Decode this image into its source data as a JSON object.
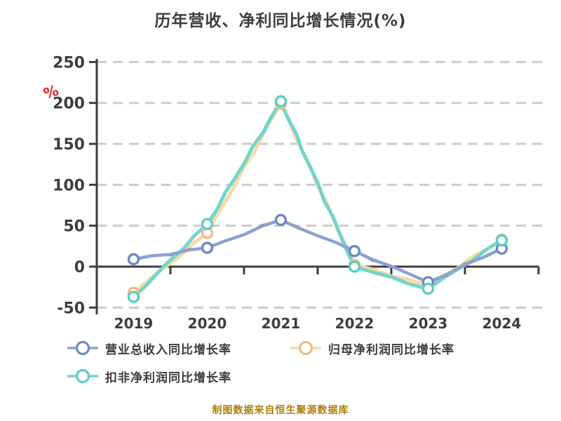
{
  "chart": {
    "title": "历年营收、净利同比增长情况(%)",
    "ylabel": "%"
  },
  "footer": {
    "source_note": "制图数据来自恒生聚源数据库"
  },
  "chart_data": {
    "type": "line",
    "style": "hand-drawn-sketch",
    "title": "历年营收、净利同比增长情况(%)",
    "categories": [
      "2019",
      "2020",
      "2021",
      "2022",
      "2023",
      "2024"
    ],
    "series": [
      {
        "name": "营业总收入同比增长率",
        "values": [
          9,
          23,
          57,
          19,
          -19,
          22
        ],
        "line_color": "#8aa2d3",
        "marker_color": "#6d89c4",
        "sketch_overlay_color": "#2e3a55"
      },
      {
        "name": "归母净利润同比增长率",
        "values": [
          -32,
          41,
          199,
          2,
          -23,
          33
        ],
        "line_color": "#f9d9a3",
        "marker_color": "#f0bd7e"
      },
      {
        "name": "扣非净利润同比增长率",
        "values": [
          -37,
          52,
          202,
          0,
          -27,
          32
        ],
        "line_color": "#72d5cd",
        "marker_color": "#5fcdc4"
      }
    ],
    "xlabel": "",
    "ylabel": "%",
    "ylim": [
      -50,
      250
    ],
    "yticks": [
      250,
      200,
      150,
      100,
      50,
      0,
      -50
    ],
    "grid": "horizontal dashed gridlines at every tick except 0; solid axis line at 0",
    "legend_position": "bottom-left",
    "marker": "open-circle",
    "colors": {
      "axis": "#3d3d3d",
      "tick_label": "#3d3d3d",
      "grid": "#cccccc",
      "ylabel_red": "#e02020",
      "title": "#3d3d3d",
      "source_note": "#b07d0a"
    }
  }
}
